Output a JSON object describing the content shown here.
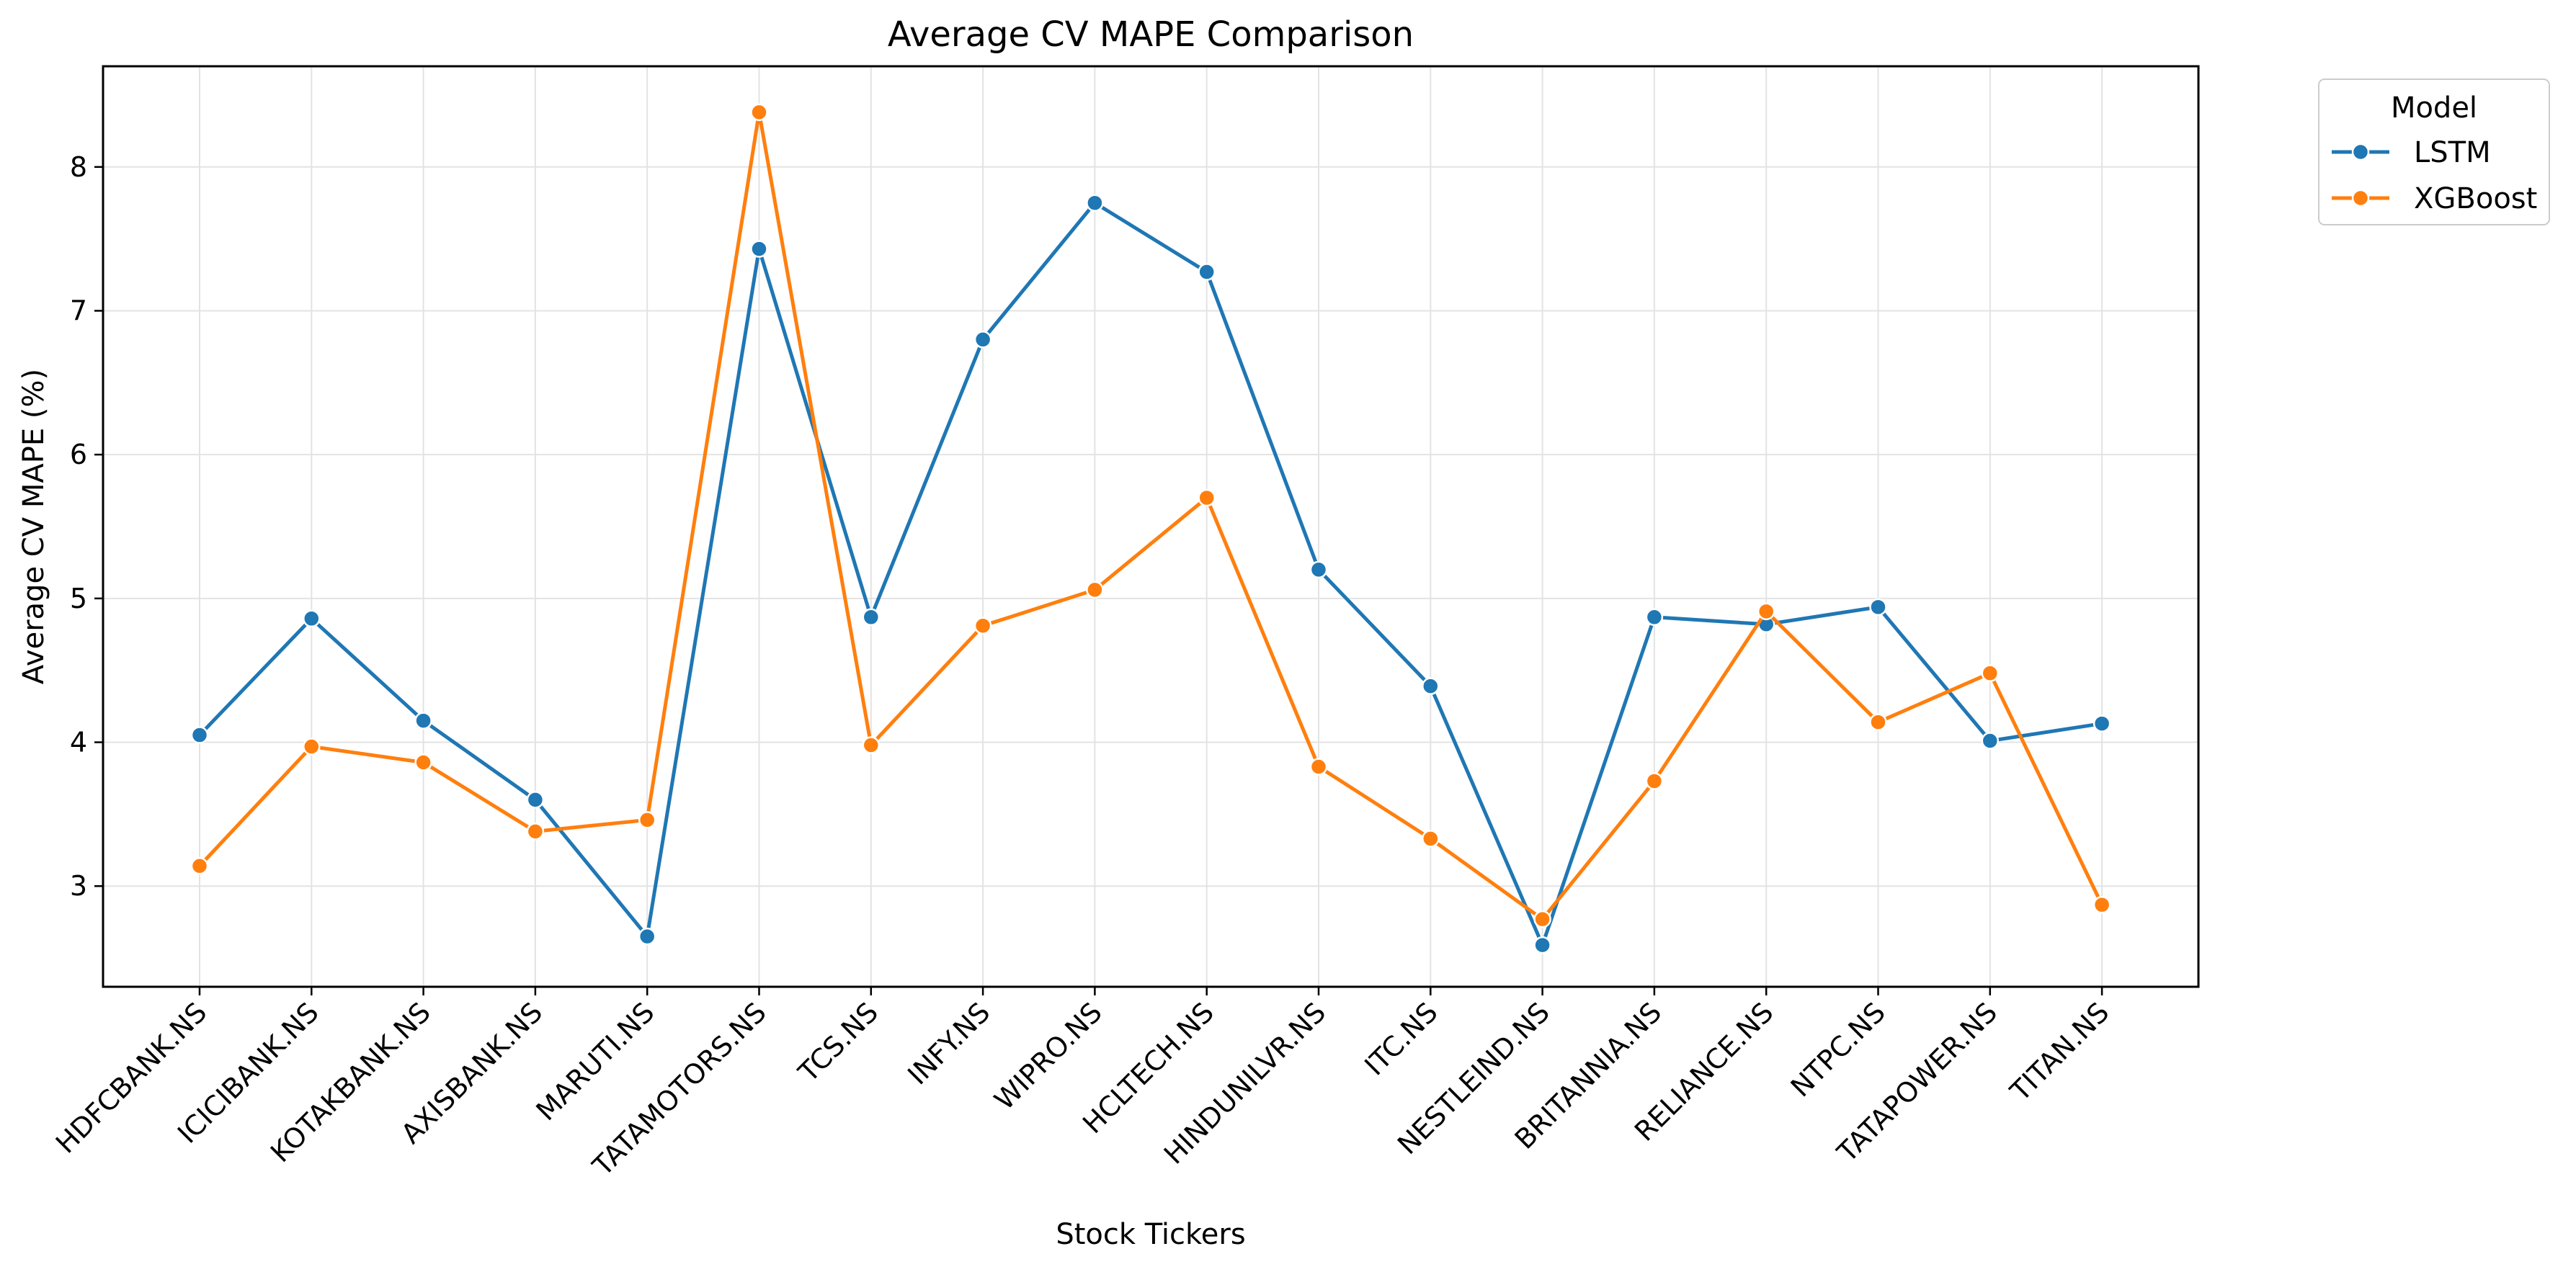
{
  "chart_data": {
    "type": "line",
    "title": "Average CV MAPE Comparison",
    "xlabel": "Stock Tickers",
    "ylabel": "Average CV MAPE (%)",
    "categories": [
      "HDFCBANK.NS",
      "ICICIBANK.NS",
      "KOTAKBANK.NS",
      "AXISBANK.NS",
      "MARUTI.NS",
      "TATAMOTORS.NS",
      "TCS.NS",
      "INFY.NS",
      "WIPRO.NS",
      "HCLTECH.NS",
      "HINDUNILVR.NS",
      "ITC.NS",
      "NESTLEIND.NS",
      "BRITANNIA.NS",
      "RELIANCE.NS",
      "NTPC.NS",
      "TATAPOWER.NS",
      "TITAN.NS"
    ],
    "ylim": [
      2.3,
      8.7
    ],
    "yticks": [
      "3",
      "4",
      "5",
      "6",
      "7",
      "8"
    ],
    "grid": true,
    "legend": {
      "title": "Model",
      "placement": "outside-top-right"
    },
    "series": [
      {
        "name": "LSTM",
        "color": "#1f77b4",
        "values": [
          4.05,
          4.86,
          4.15,
          3.6,
          2.65,
          7.43,
          4.87,
          6.8,
          7.75,
          7.27,
          5.2,
          4.39,
          2.59,
          4.87,
          4.82,
          4.94,
          4.01,
          4.13
        ]
      },
      {
        "name": "XGBoost",
        "color": "#ff7f0e",
        "values": [
          3.14,
          3.97,
          3.86,
          3.38,
          3.46,
          8.38,
          3.98,
          4.81,
          5.06,
          5.7,
          3.83,
          3.33,
          2.77,
          3.73,
          4.91,
          4.14,
          4.48,
          2.87
        ]
      }
    ]
  }
}
